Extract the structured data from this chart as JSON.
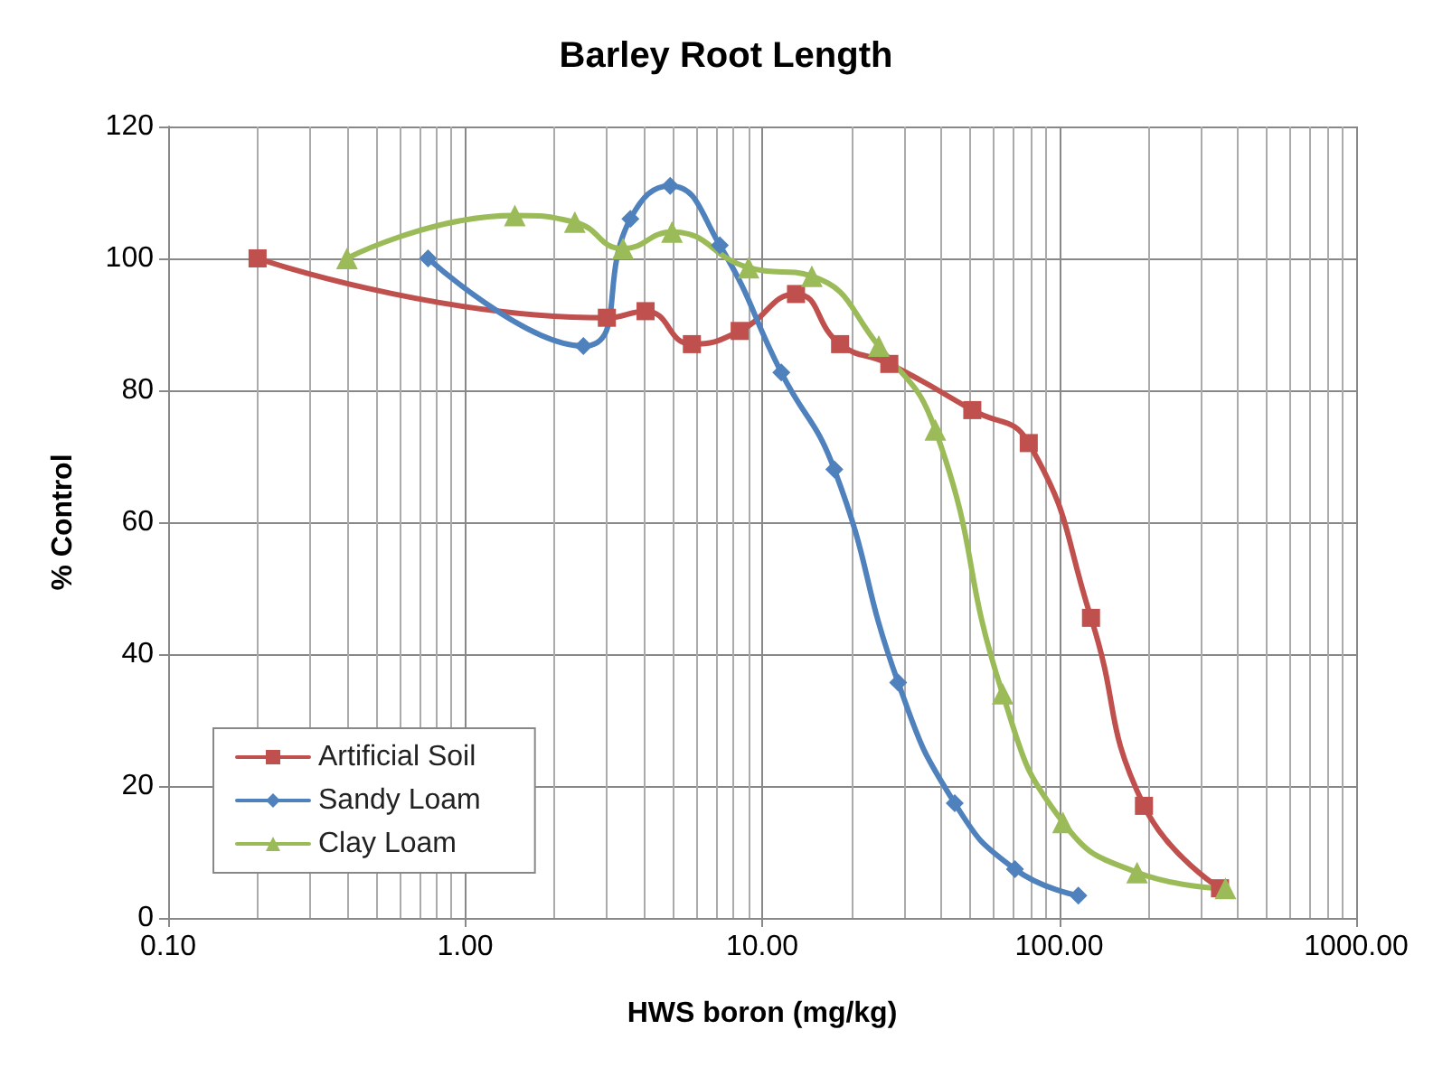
{
  "chart_data": {
    "type": "line",
    "title": "Barley Root Length",
    "xlabel": "HWS boron (mg/kg)",
    "ylabel": "% Control",
    "log": "x",
    "grid": true,
    "legend": "bottom left",
    "line_style": "solid",
    "xlim": [
      0.1,
      1000
    ],
    "xticks": [
      {
        "value": 0.1,
        "label": "0.10"
      },
      {
        "value": 1,
        "label": "1.00"
      },
      {
        "value": 10,
        "label": "10.00"
      },
      {
        "value": 100,
        "label": "100.00"
      },
      {
        "value": 1000,
        "label": "1000.00"
      }
    ],
    "ylim": [
      0,
      120
    ],
    "yticks": [
      0,
      20,
      40,
      60,
      80,
      100,
      120
    ],
    "series": [
      {
        "name": "Artificial Soil",
        "color": "#c0504d",
        "marker": "square",
        "x": [
          0.2,
          3.0,
          4.05,
          5.8,
          8.4,
          13,
          18.3,
          26.8,
          51,
          79,
          128,
          193,
          348
        ],
        "values": [
          100,
          91,
          92,
          87,
          89,
          94.6,
          87,
          84,
          77,
          72,
          45.5,
          17,
          4.5
        ]
      },
      {
        "name": "Sandy Loam",
        "color": "#4f81bd",
        "marker": "diamond",
        "x": [
          0.75,
          2.5,
          3.6,
          4.9,
          7.2,
          11.6,
          17.5,
          28.7,
          44.5,
          71,
          116
        ],
        "values": [
          100,
          86.7,
          106,
          111,
          102,
          82.7,
          68,
          35.7,
          17.4,
          7.4,
          3.4
        ]
      },
      {
        "name": "Clay Loam",
        "color": "#9bbb59",
        "marker": "triangle",
        "x": [
          0.4,
          1.47,
          2.34,
          3.4,
          4.97,
          9.0,
          14.7,
          24.7,
          38.3,
          64.5,
          103,
          183,
          363
        ],
        "values": [
          100,
          106.5,
          105.5,
          101.5,
          104,
          98.6,
          97.3,
          86.7,
          74,
          34,
          14.5,
          6.9,
          4.5
        ]
      }
    ]
  }
}
